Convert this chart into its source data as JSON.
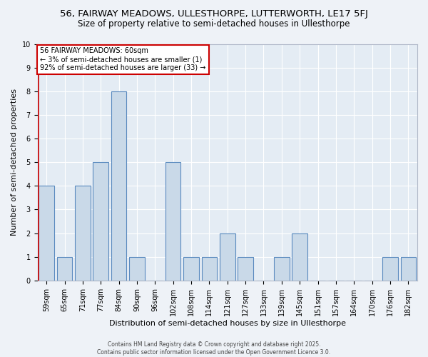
{
  "title1": "56, FAIRWAY MEADOWS, ULLESTHORPE, LUTTERWORTH, LE17 5FJ",
  "title2": "Size of property relative to semi-detached houses in Ullesthorpe",
  "xlabel": "Distribution of semi-detached houses by size in Ullesthorpe",
  "ylabel": "Number of semi-detached properties",
  "categories": [
    "59sqm",
    "65sqm",
    "71sqm",
    "77sqm",
    "84sqm",
    "90sqm",
    "96sqm",
    "102sqm",
    "108sqm",
    "114sqm",
    "121sqm",
    "127sqm",
    "133sqm",
    "139sqm",
    "145sqm",
    "151sqm",
    "157sqm",
    "164sqm",
    "170sqm",
    "176sqm",
    "182sqm"
  ],
  "values": [
    4,
    1,
    4,
    5,
    8,
    1,
    0,
    5,
    1,
    1,
    2,
    1,
    0,
    1,
    2,
    0,
    0,
    0,
    0,
    1,
    1
  ],
  "bar_color": "#c9d9e8",
  "bar_edge_color": "#5a8abf",
  "annotation_text": "56 FAIRWAY MEADOWS: 60sqm\n← 3% of semi-detached houses are smaller (1)\n92% of semi-detached houses are larger (33) →",
  "annotation_box_color": "#ffffff",
  "annotation_box_edge": "#cc0000",
  "vline_color": "#cc0000",
  "ylim": [
    0,
    10
  ],
  "yticks": [
    0,
    1,
    2,
    3,
    4,
    5,
    6,
    7,
    8,
    9,
    10
  ],
  "footer": "Contains HM Land Registry data © Crown copyright and database right 2025.\nContains public sector information licensed under the Open Government Licence 3.0.",
  "bg_color": "#eef2f7",
  "plot_bg_color": "#e4ecf4",
  "title_fontsize": 9.5,
  "subtitle_fontsize": 8.5,
  "tick_fontsize": 7,
  "label_fontsize": 8,
  "annotation_fontsize": 7,
  "footer_fontsize": 5.5
}
